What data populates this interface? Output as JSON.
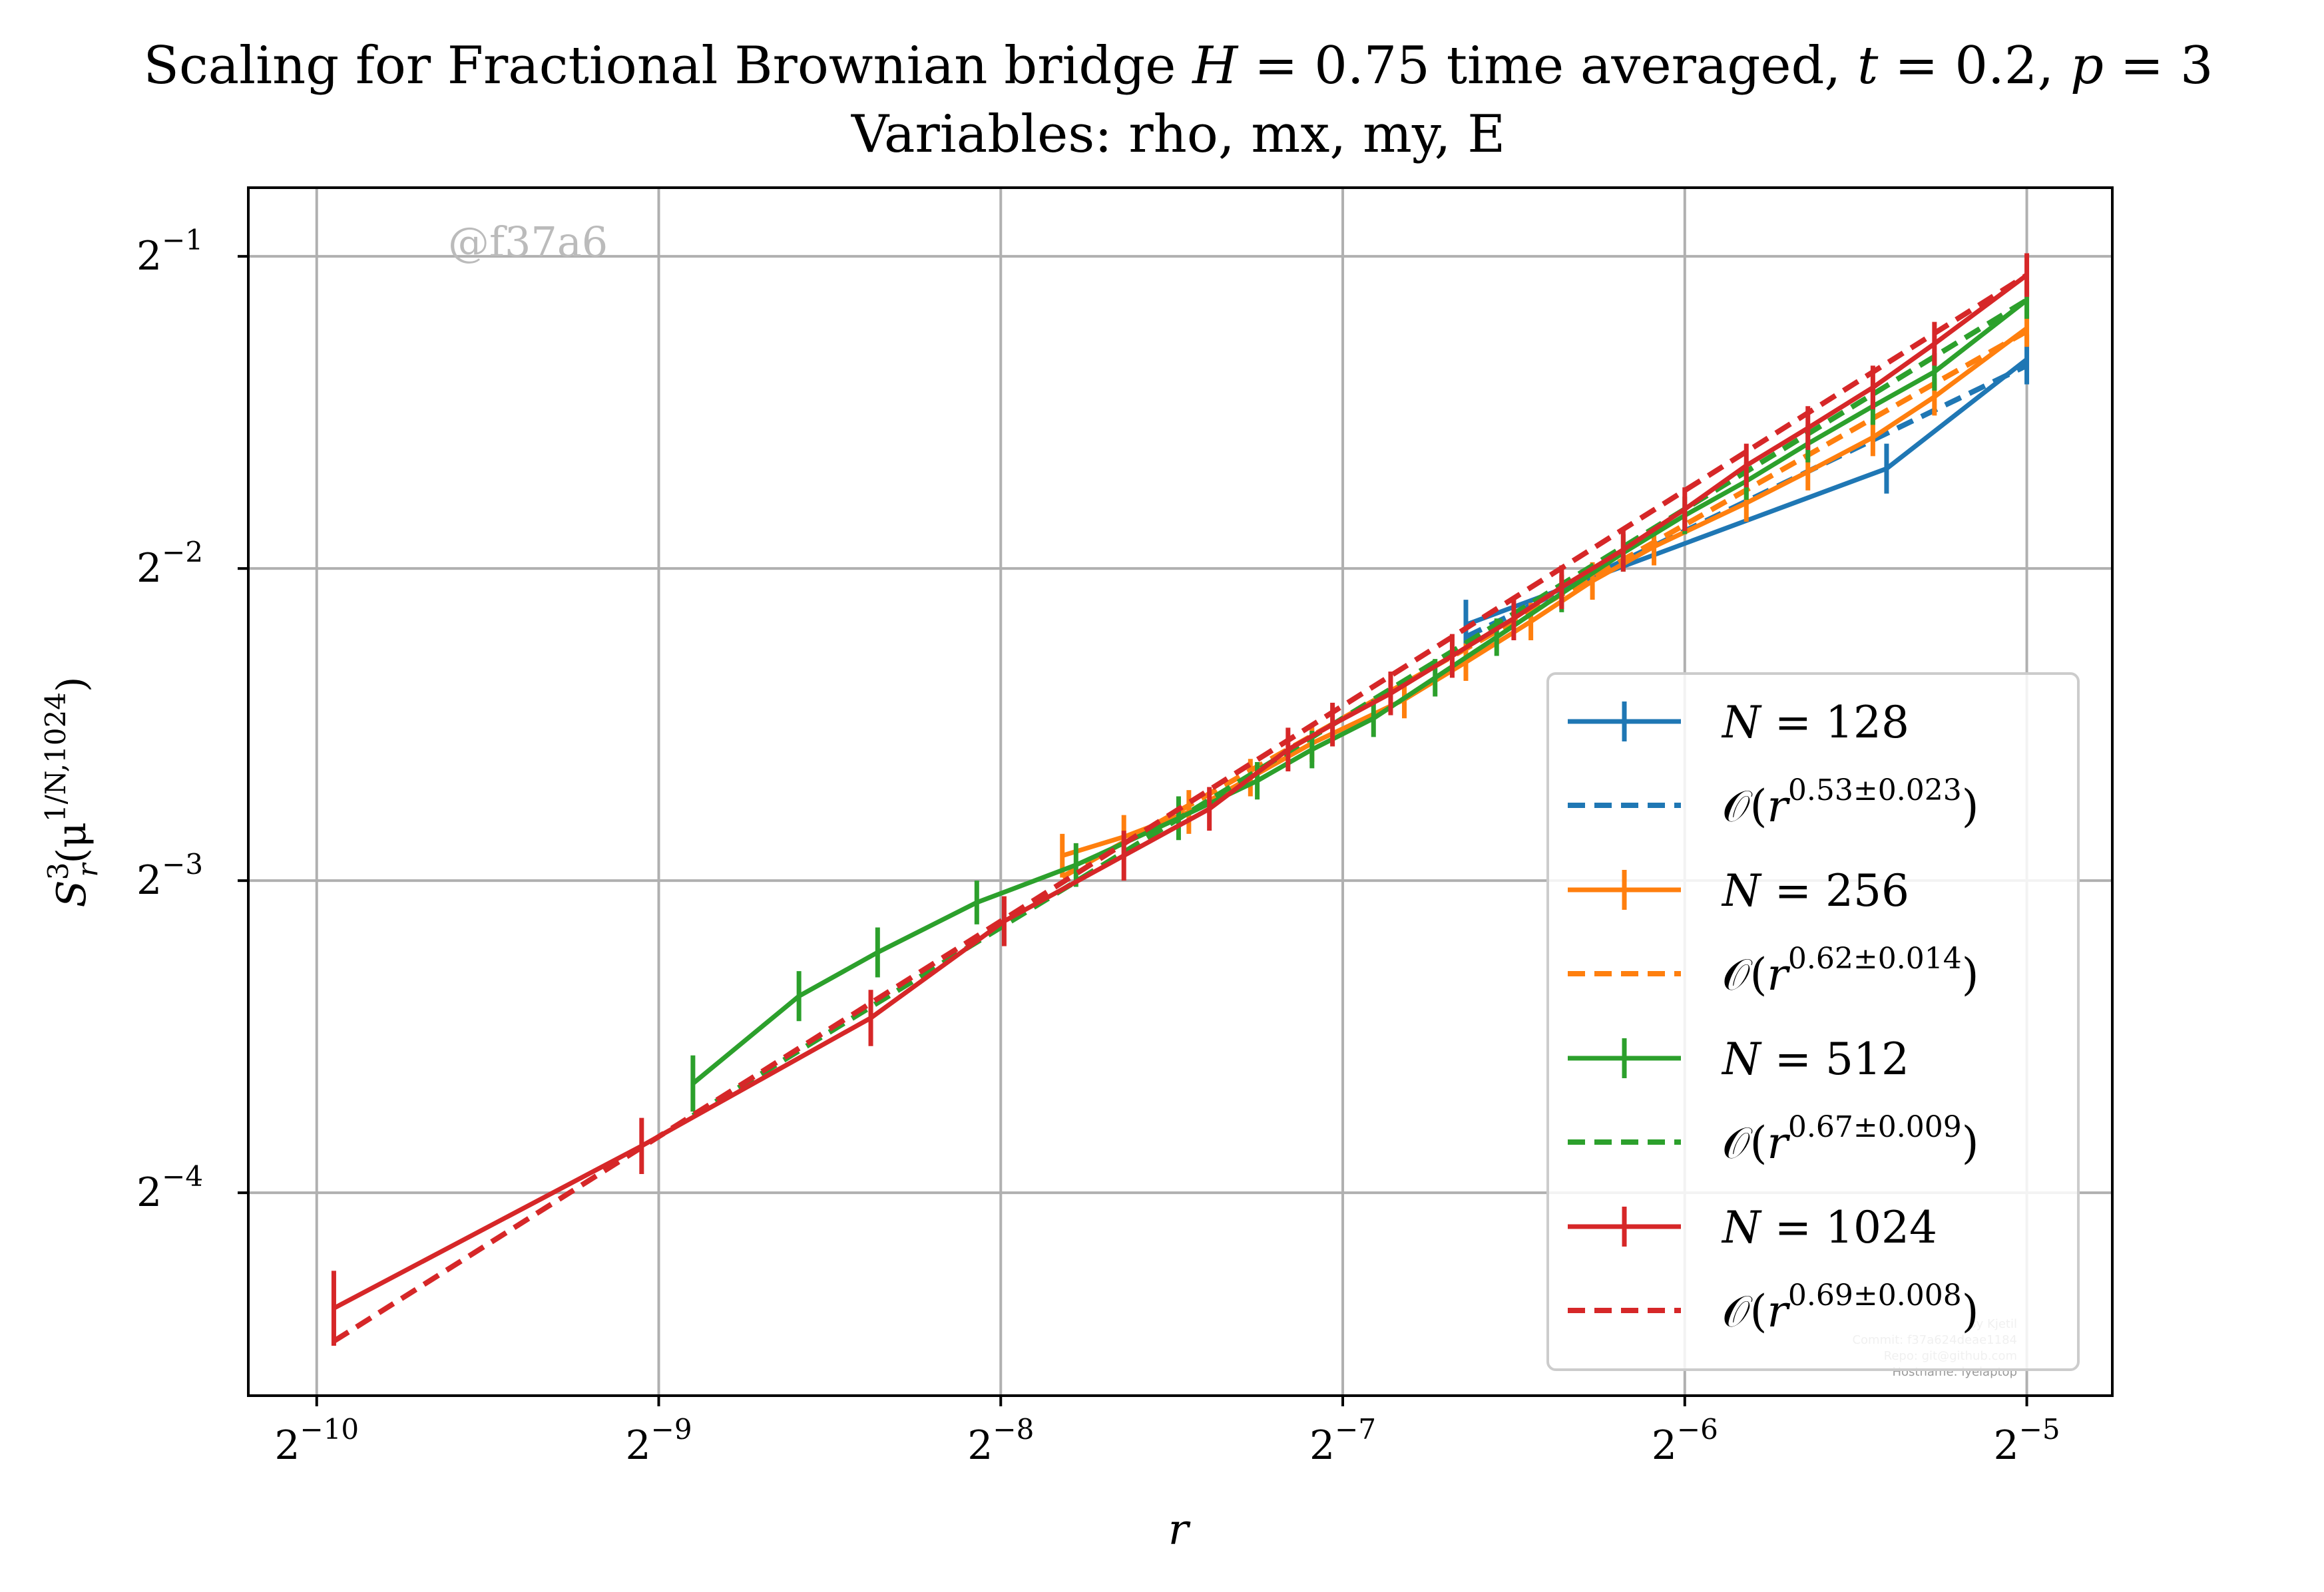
{
  "chart_data": {
    "type": "line",
    "title": "Scaling for Fractional Brownian bridge H = 0.75 time averaged, t = 0.2, p = 3",
    "subtitle": "Variables: rho, mx, my, E",
    "xlabel": "r",
    "ylabel": "S_r^3(μ^{1/N,1024})",
    "x_scale": "log2",
    "y_scale": "log2",
    "xlim_log2": [
      -10.2,
      -4.75
    ],
    "ylim_log2": [
      -4.65,
      -0.78
    ],
    "x_ticks": [
      {
        "exp": -10,
        "label": "2^{-10}"
      },
      {
        "exp": -9,
        "label": "2^{-9}"
      },
      {
        "exp": -8,
        "label": "2^{-8}"
      },
      {
        "exp": -7,
        "label": "2^{-7}"
      },
      {
        "exp": -6,
        "label": "2^{-6}"
      },
      {
        "exp": -5,
        "label": "2^{-5}"
      }
    ],
    "y_ticks": [
      {
        "exp": -1,
        "label": "2^{-1}"
      },
      {
        "exp": -2,
        "label": "2^{-2}"
      },
      {
        "exp": -3,
        "label": "2^{-3}"
      },
      {
        "exp": -4,
        "label": "2^{-4}"
      }
    ],
    "grid": true,
    "legend_position": "lower-right",
    "watermark": "@f37a6",
    "footer_lines": [
      "By Kjetil",
      "Commit: f37a624deae1184",
      "Repo: git@github.com",
      "Hostname: lyelaptop"
    ],
    "series": [
      {
        "name": "N = 128",
        "n": "128",
        "color": "#1f77b4",
        "points": [
          {
            "x_log2": -6.64,
            "y_log2": -2.18,
            "err": 0.08
          },
          {
            "x_log2": -5.41,
            "y_log2": -1.68,
            "err": 0.08
          },
          {
            "x_log2": -5.0,
            "y_log2": -1.33,
            "err": 0.08
          }
        ],
        "fit": {
          "exponent": "0.53",
          "error": "0.023",
          "slope": 0.53,
          "x_range": [
            -6.64,
            -5.0
          ],
          "y_at_end": -1.35
        }
      },
      {
        "name": "N = 256",
        "n": "256",
        "color": "#ff7f0e",
        "points": [
          {
            "x_log2": -7.82,
            "y_log2": -2.92,
            "err": 0.07
          },
          {
            "x_log2": -7.64,
            "y_log2": -2.86,
            "err": 0.07
          },
          {
            "x_log2": -7.45,
            "y_log2": -2.78,
            "err": 0.07
          },
          {
            "x_log2": -7.27,
            "y_log2": -2.67,
            "err": 0.06
          },
          {
            "x_log2": -7.09,
            "y_log2": -2.56,
            "err": 0.06
          },
          {
            "x_log2": -6.82,
            "y_log2": -2.42,
            "err": 0.06
          },
          {
            "x_log2": -6.64,
            "y_log2": -2.3,
            "err": 0.06
          },
          {
            "x_log2": -6.45,
            "y_log2": -2.17,
            "err": 0.06
          },
          {
            "x_log2": -6.27,
            "y_log2": -2.04,
            "err": 0.06
          },
          {
            "x_log2": -6.09,
            "y_log2": -1.93,
            "err": 0.06
          },
          {
            "x_log2": -5.82,
            "y_log2": -1.79,
            "err": 0.06
          },
          {
            "x_log2": -5.64,
            "y_log2": -1.69,
            "err": 0.06
          },
          {
            "x_log2": -5.45,
            "y_log2": -1.58,
            "err": 0.06
          },
          {
            "x_log2": -5.27,
            "y_log2": -1.45,
            "err": 0.06
          },
          {
            "x_log2": -5.0,
            "y_log2": -1.23,
            "err": 0.06
          }
        ],
        "fit": {
          "exponent": "0.62",
          "error": "0.014",
          "slope": 0.62,
          "x_range": [
            -7.82,
            -5.0
          ],
          "y_at_end": -1.24
        }
      },
      {
        "name": "N = 512",
        "n": "512",
        "color": "#2ca02c",
        "points": [
          {
            "x_log2": -8.9,
            "y_log2": -3.65,
            "err": 0.09
          },
          {
            "x_log2": -8.59,
            "y_log2": -3.37,
            "err": 0.08
          },
          {
            "x_log2": -8.36,
            "y_log2": -3.23,
            "err": 0.08
          },
          {
            "x_log2": -8.07,
            "y_log2": -3.07,
            "err": 0.07
          },
          {
            "x_log2": -7.78,
            "y_log2": -2.95,
            "err": 0.07
          },
          {
            "x_log2": -7.48,
            "y_log2": -2.8,
            "err": 0.07
          },
          {
            "x_log2": -7.25,
            "y_log2": -2.68,
            "err": 0.06
          },
          {
            "x_log2": -7.09,
            "y_log2": -2.58,
            "err": 0.06
          },
          {
            "x_log2": -6.91,
            "y_log2": -2.48,
            "err": 0.06
          },
          {
            "x_log2": -6.73,
            "y_log2": -2.35,
            "err": 0.06
          },
          {
            "x_log2": -6.55,
            "y_log2": -2.22,
            "err": 0.06
          },
          {
            "x_log2": -6.36,
            "y_log2": -2.08,
            "err": 0.06
          },
          {
            "x_log2": -6.18,
            "y_log2": -1.95,
            "err": 0.06
          },
          {
            "x_log2": -6.0,
            "y_log2": -1.83,
            "err": 0.06
          },
          {
            "x_log2": -5.82,
            "y_log2": -1.72,
            "err": 0.06
          },
          {
            "x_log2": -5.64,
            "y_log2": -1.6,
            "err": 0.06
          },
          {
            "x_log2": -5.45,
            "y_log2": -1.48,
            "err": 0.06
          },
          {
            "x_log2": -5.27,
            "y_log2": -1.37,
            "err": 0.06
          },
          {
            "x_log2": -5.0,
            "y_log2": -1.14,
            "err": 0.06
          }
        ],
        "fit": {
          "exponent": "0.67",
          "error": "0.009",
          "slope": 0.67,
          "x_range": [
            -8.9,
            -5.0
          ],
          "y_at_end": -1.14
        }
      },
      {
        "name": "N = 1024",
        "n": "1024",
        "color": "#d62728",
        "points": [
          {
            "x_log2": -9.95,
            "y_log2": -4.37,
            "err": 0.12
          },
          {
            "x_log2": -9.05,
            "y_log2": -3.85,
            "err": 0.09
          },
          {
            "x_log2": -8.38,
            "y_log2": -3.44,
            "err": 0.09
          },
          {
            "x_log2": -7.99,
            "y_log2": -3.13,
            "err": 0.08
          },
          {
            "x_log2": -7.64,
            "y_log2": -2.92,
            "err": 0.08
          },
          {
            "x_log2": -7.39,
            "y_log2": -2.77,
            "err": 0.07
          },
          {
            "x_log2": -7.16,
            "y_log2": -2.58,
            "err": 0.07
          },
          {
            "x_log2": -7.03,
            "y_log2": -2.5,
            "err": 0.07
          },
          {
            "x_log2": -6.86,
            "y_log2": -2.4,
            "err": 0.07
          },
          {
            "x_log2": -6.68,
            "y_log2": -2.28,
            "err": 0.07
          },
          {
            "x_log2": -6.5,
            "y_log2": -2.16,
            "err": 0.07
          },
          {
            "x_log2": -6.36,
            "y_log2": -2.06,
            "err": 0.07
          },
          {
            "x_log2": -6.18,
            "y_log2": -1.94,
            "err": 0.07
          },
          {
            "x_log2": -6.0,
            "y_log2": -1.81,
            "err": 0.07
          },
          {
            "x_log2": -5.82,
            "y_log2": -1.67,
            "err": 0.07
          },
          {
            "x_log2": -5.64,
            "y_log2": -1.55,
            "err": 0.07
          },
          {
            "x_log2": -5.45,
            "y_log2": -1.42,
            "err": 0.07
          },
          {
            "x_log2": -5.27,
            "y_log2": -1.28,
            "err": 0.07
          },
          {
            "x_log2": -5.0,
            "y_log2": -1.06,
            "err": 0.07
          }
        ],
        "fit": {
          "exponent": "0.69",
          "error": "0.008",
          "slope": 0.69,
          "x_range": [
            -9.95,
            -5.0
          ],
          "y_at_end": -1.06
        }
      }
    ]
  }
}
